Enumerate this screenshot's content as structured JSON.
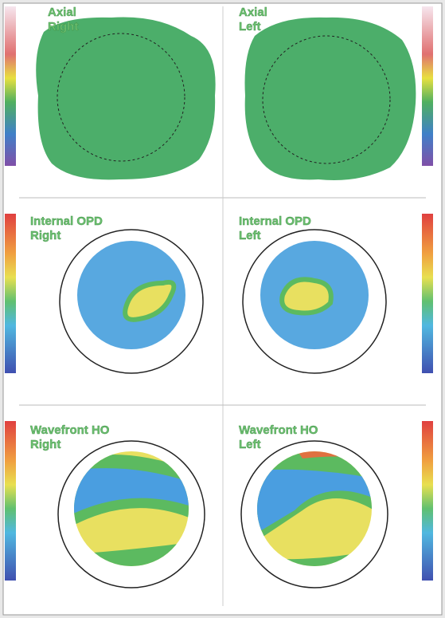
{
  "panels": [
    {
      "title": "Axial",
      "eye": "Right"
    },
    {
      "title": "Axial",
      "eye": "Left"
    },
    {
      "title": "Internal OPD",
      "eye": "Right"
    },
    {
      "title": "Internal OPD",
      "eye": "Left"
    },
    {
      "title": "Wavefront HO",
      "eye": "Right"
    },
    {
      "title": "Wavefront HO",
      "eye": "Left"
    }
  ]
}
